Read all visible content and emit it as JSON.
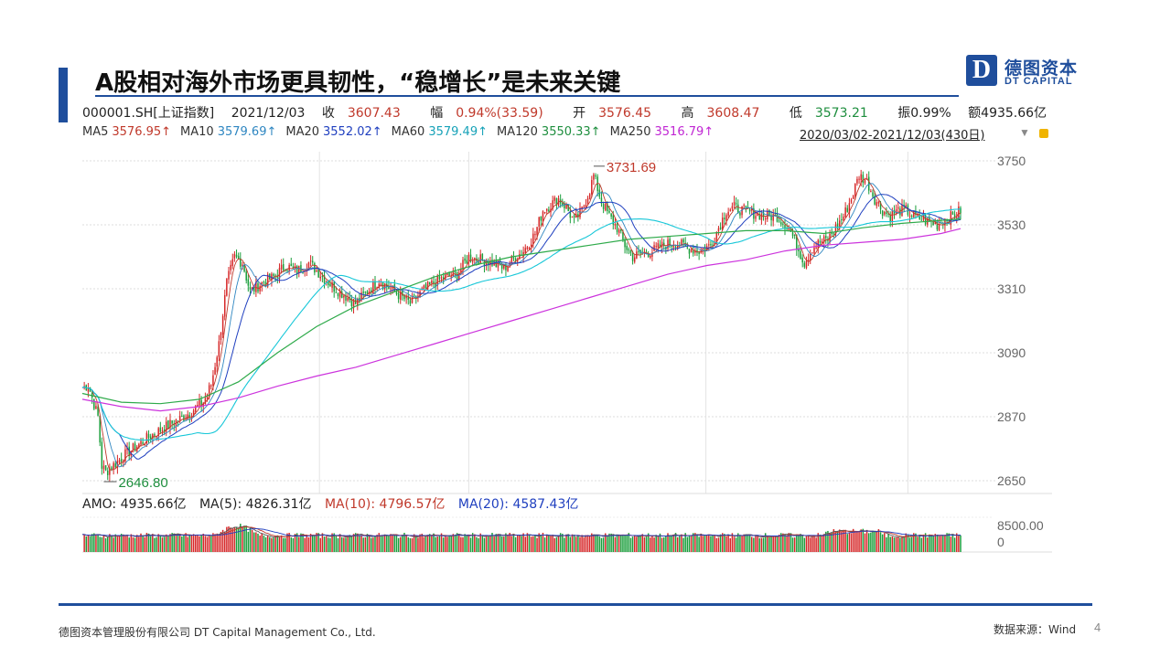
{
  "title": "A股相对海外市场更具韧性，“稳增长”是未来关键",
  "logo": {
    "mark": "D",
    "cn": "德图资本",
    "en": "DT CAPITAL"
  },
  "quote": {
    "code": "000001.SH[上证指数]",
    "date": "2021/12/03",
    "close_label": "收",
    "close": "3607.43",
    "amp_label": "幅",
    "amp": "0.94%(33.59)",
    "open_label": "开",
    "open": "3576.45",
    "high_label": "高",
    "high": "3608.47",
    "low_label": "低",
    "low": "3573.21",
    "swing": "振0.99%",
    "turnover": "额4935.66亿"
  },
  "ma": [
    {
      "label": "MA5",
      "value": "3576.95↑",
      "color": "#c0392b"
    },
    {
      "label": "MA10",
      "value": "3579.69↑",
      "color": "#2e86c1"
    },
    {
      "label": "MA20",
      "value": "3552.02↑",
      "color": "#1f3fbf"
    },
    {
      "label": "MA60",
      "value": "3579.49↑",
      "color": "#17a2b8"
    },
    {
      "label": "MA120",
      "value": "3550.33↑",
      "color": "#1e8e3e"
    },
    {
      "label": "MA250",
      "value": "3516.79↑",
      "color": "#c026d3"
    }
  ],
  "range": "2020/03/02-2021/12/03(430日)",
  "volume_header": {
    "amo": "AMO: 4935.66亿",
    "ma5": "MA(5): 4826.31亿",
    "ma10": "MA(10): 4796.57亿",
    "ma20": "MA(20): 4587.43亿"
  },
  "footer": {
    "company": "德图资本管理股份有限公司 DT Capital Management Co., Ltd.",
    "source": "数据来源：Wind",
    "page": "4"
  },
  "chart_data": {
    "type": "candlestick",
    "y_ticks": [
      3750,
      3530,
      3310,
      3090,
      2870,
      2650
    ],
    "ylim": [
      2620,
      3770
    ],
    "annotations": [
      {
        "label": "3731.69",
        "value": 3731.69,
        "color": "#c0392b"
      },
      {
        "label": "2646.80",
        "value": 2646.8,
        "color": "#1e8e3e"
      }
    ],
    "anchors": [
      [
        0,
        2970
      ],
      [
        3,
        2980
      ],
      [
        8,
        2870
      ],
      [
        10,
        2700
      ],
      [
        12,
        2680
      ],
      [
        22,
        2740
      ],
      [
        34,
        2800
      ],
      [
        44,
        2840
      ],
      [
        52,
        2870
      ],
      [
        58,
        2900
      ],
      [
        62,
        2920
      ],
      [
        66,
        2980
      ],
      [
        70,
        3120
      ],
      [
        74,
        3330
      ],
      [
        78,
        3420
      ],
      [
        82,
        3400
      ],
      [
        86,
        3300
      ],
      [
        92,
        3330
      ],
      [
        98,
        3350
      ],
      [
        104,
        3390
      ],
      [
        110,
        3370
      ],
      [
        116,
        3400
      ],
      [
        122,
        3360
      ],
      [
        128,
        3320
      ],
      [
        134,
        3290
      ],
      [
        140,
        3260
      ],
      [
        146,
        3300
      ],
      [
        152,
        3340
      ],
      [
        158,
        3310
      ],
      [
        164,
        3280
      ],
      [
        168,
        3260
      ],
      [
        174,
        3300
      ],
      [
        180,
        3330
      ],
      [
        186,
        3350
      ],
      [
        192,
        3360
      ],
      [
        198,
        3420
      ],
      [
        204,
        3410
      ],
      [
        210,
        3400
      ],
      [
        216,
        3380
      ],
      [
        222,
        3420
      ],
      [
        226,
        3440
      ],
      [
        232,
        3500
      ],
      [
        236,
        3580
      ],
      [
        240,
        3600
      ],
      [
        244,
        3620
      ],
      [
        248,
        3590
      ],
      [
        252,
        3540
      ],
      [
        256,
        3580
      ],
      [
        260,
        3650
      ],
      [
        262,
        3700
      ],
      [
        266,
        3610
      ],
      [
        270,
        3560
      ],
      [
        274,
        3520
      ],
      [
        278,
        3460
      ],
      [
        282,
        3420
      ],
      [
        286,
        3430
      ],
      [
        292,
        3440
      ],
      [
        298,
        3460
      ],
      [
        304,
        3470
      ],
      [
        310,
        3450
      ],
      [
        316,
        3440
      ],
      [
        322,
        3460
      ],
      [
        326,
        3520
      ],
      [
        330,
        3580
      ],
      [
        334,
        3590
      ],
      [
        338,
        3580
      ],
      [
        344,
        3570
      ],
      [
        350,
        3560
      ],
      [
        356,
        3560
      ],
      [
        362,
        3520
      ],
      [
        366,
        3460
      ],
      [
        370,
        3400
      ],
      [
        374,
        3450
      ],
      [
        378,
        3470
      ],
      [
        382,
        3480
      ],
      [
        386,
        3520
      ],
      [
        390,
        3560
      ],
      [
        394,
        3620
      ],
      [
        398,
        3700
      ],
      [
        402,
        3680
      ],
      [
        406,
        3620
      ],
      [
        410,
        3580
      ],
      [
        414,
        3560
      ],
      [
        418,
        3580
      ],
      [
        422,
        3580
      ],
      [
        426,
        3560
      ],
      [
        430,
        3550
      ],
      [
        434,
        3540
      ],
      [
        438,
        3530
      ],
      [
        442,
        3550
      ],
      [
        446,
        3560
      ],
      [
        450,
        3580
      ]
    ],
    "ma250_points": [
      [
        0,
        2930
      ],
      [
        20,
        2905
      ],
      [
        40,
        2890
      ],
      [
        60,
        2905
      ],
      [
        80,
        2935
      ],
      [
        100,
        2975
      ],
      [
        120,
        3010
      ],
      [
        140,
        3040
      ],
      [
        160,
        3080
      ],
      [
        180,
        3120
      ],
      [
        200,
        3160
      ],
      [
        220,
        3200
      ],
      [
        240,
        3240
      ],
      [
        260,
        3280
      ],
      [
        280,
        3320
      ],
      [
        300,
        3360
      ],
      [
        320,
        3390
      ],
      [
        340,
        3410
      ],
      [
        360,
        3440
      ],
      [
        380,
        3460
      ],
      [
        400,
        3470
      ],
      [
        420,
        3480
      ],
      [
        440,
        3500
      ],
      [
        450,
        3516.79
      ]
    ],
    "ma120_points": [
      [
        0,
        2950
      ],
      [
        20,
        2920
      ],
      [
        40,
        2915
      ],
      [
        60,
        2930
      ],
      [
        80,
        2990
      ],
      [
        100,
        3090
      ],
      [
        120,
        3180
      ],
      [
        140,
        3250
      ],
      [
        160,
        3300
      ],
      [
        180,
        3350
      ],
      [
        200,
        3390
      ],
      [
        220,
        3420
      ],
      [
        240,
        3440
      ],
      [
        260,
        3460
      ],
      [
        280,
        3480
      ],
      [
        300,
        3490
      ],
      [
        320,
        3500
      ],
      [
        340,
        3510
      ],
      [
        360,
        3510
      ],
      [
        380,
        3500
      ],
      [
        400,
        3520
      ],
      [
        420,
        3535
      ],
      [
        440,
        3545
      ],
      [
        450,
        3550.33
      ]
    ],
    "volume_ylabels": [
      "8500.00",
      "0"
    ]
  }
}
